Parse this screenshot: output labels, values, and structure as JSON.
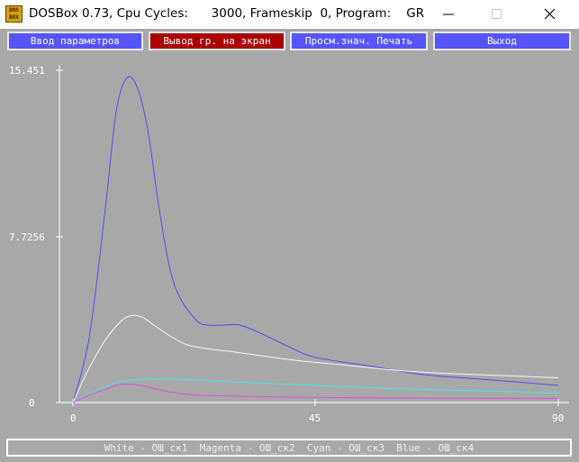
{
  "window": {
    "icon_text": "DOS\nBOX",
    "title": "DOSBox 0.73, Cpu Cycles:      3000, Frameskip  0, Program:    GR"
  },
  "menu": {
    "buttons": [
      {
        "label": "Ввод параметров",
        "state": "normal"
      },
      {
        "label": "Вывод гр. на экран",
        "state": "active"
      },
      {
        "label": "Просм.знач. Печать",
        "state": "normal"
      },
      {
        "label": "Выход",
        "state": "normal"
      }
    ]
  },
  "chart_data": {
    "type": "line",
    "ylim": [
      0,
      15.451
    ],
    "xlim": [
      0,
      90
    ],
    "yticks": [
      "15.451",
      "7.7256",
      "0"
    ],
    "xticks": [
      "0",
      "45",
      "90"
    ],
    "series": [
      {
        "color": "#5050f0",
        "points": [
          [
            0,
            0
          ],
          [
            3,
            3
          ],
          [
            6,
            9
          ],
          [
            8,
            13.5
          ],
          [
            10,
            15.1
          ],
          [
            12,
            14.6
          ],
          [
            14,
            12.5
          ],
          [
            16,
            9
          ],
          [
            18,
            6.2
          ],
          [
            20,
            4.8
          ],
          [
            23,
            3.8
          ],
          [
            25,
            3.6
          ],
          [
            28,
            3.6
          ],
          [
            31,
            3.6
          ],
          [
            35,
            3.2
          ],
          [
            40,
            2.6
          ],
          [
            45,
            2.1
          ],
          [
            55,
            1.7
          ],
          [
            65,
            1.3
          ],
          [
            75,
            1.1
          ],
          [
            85,
            0.9
          ],
          [
            90,
            0.8
          ]
        ]
      },
      {
        "color": "#f4f4f4",
        "points": [
          [
            0,
            0
          ],
          [
            3,
            1.6
          ],
          [
            6,
            2.9
          ],
          [
            9,
            3.8
          ],
          [
            11,
            4.05
          ],
          [
            13,
            3.95
          ],
          [
            15,
            3.6
          ],
          [
            18,
            3.1
          ],
          [
            21,
            2.7
          ],
          [
            25,
            2.5
          ],
          [
            30,
            2.35
          ],
          [
            40,
            2.0
          ],
          [
            50,
            1.75
          ],
          [
            60,
            1.5
          ],
          [
            70,
            1.35
          ],
          [
            80,
            1.25
          ],
          [
            90,
            1.15
          ]
        ]
      },
      {
        "color": "#44e8e8",
        "points": [
          [
            0,
            0
          ],
          [
            4,
            0.55
          ],
          [
            7,
            0.85
          ],
          [
            10,
            1.02
          ],
          [
            14,
            1.1
          ],
          [
            18,
            1.1
          ],
          [
            23,
            1.05
          ],
          [
            30,
            0.95
          ],
          [
            40,
            0.85
          ],
          [
            50,
            0.75
          ],
          [
            60,
            0.65
          ],
          [
            75,
            0.55
          ],
          [
            90,
            0.45
          ]
        ]
      },
      {
        "color": "#e050e0",
        "points": [
          [
            0,
            0
          ],
          [
            3,
            0.35
          ],
          [
            6,
            0.6
          ],
          [
            8,
            0.8
          ],
          [
            11,
            0.85
          ],
          [
            13,
            0.78
          ],
          [
            16,
            0.6
          ],
          [
            19,
            0.45
          ],
          [
            23,
            0.35
          ],
          [
            30,
            0.3
          ],
          [
            40,
            0.25
          ],
          [
            55,
            0.22
          ],
          [
            70,
            0.2
          ],
          [
            90,
            0.19
          ]
        ]
      }
    ]
  },
  "legend": {
    "text": "White - ОШ_ск1  Magenta - ОШ_ск2  Cyan - ОШ_ск3  Blue - ОШ_ск4"
  }
}
